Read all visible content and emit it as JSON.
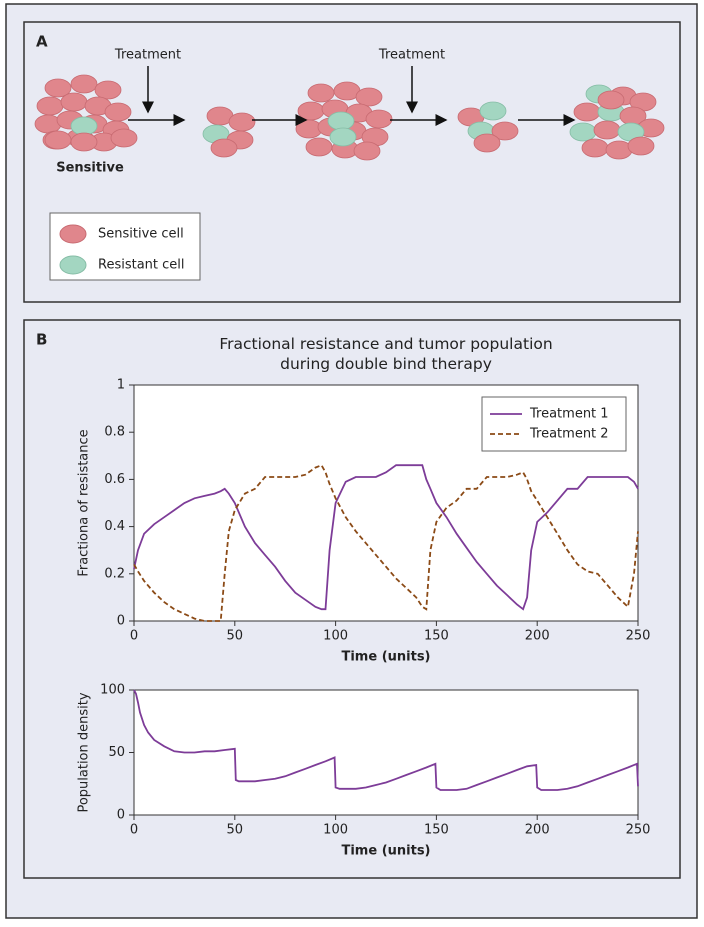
{
  "panel_a": {
    "label": "A",
    "treatment_labels": [
      "Treatment",
      "Treatment"
    ],
    "sensitive_label": "Sensitive",
    "legend": [
      "Sensitive cell",
      "Resistant cell"
    ]
  },
  "panel_b": {
    "label": "B"
  },
  "chart_data": [
    {
      "type": "line",
      "title": "Fractional resistance and tumor population during double bind therapy",
      "xlabel": "Time (units)",
      "ylabel": "Fractiona of resistance",
      "x": [
        0,
        2,
        5,
        10,
        15,
        20,
        25,
        30,
        35,
        40,
        43,
        45,
        47,
        50,
        55,
        60,
        65,
        70,
        75,
        80,
        85,
        90,
        93,
        95,
        97,
        100,
        105,
        110,
        115,
        120,
        125,
        130,
        135,
        140,
        143,
        145,
        147,
        150,
        155,
        160,
        165,
        170,
        175,
        180,
        185,
        190,
        193,
        195,
        197,
        200,
        205,
        210,
        215,
        220,
        225,
        230,
        235,
        240,
        245,
        248,
        250
      ],
      "series": [
        {
          "name": "Treatment 1",
          "color": "#7d3c98",
          "linestyle": "solid",
          "values": [
            0.22,
            0.3,
            0.37,
            0.41,
            0.44,
            0.47,
            0.5,
            0.52,
            0.53,
            0.54,
            0.55,
            0.56,
            0.54,
            0.5,
            0.4,
            0.33,
            0.28,
            0.23,
            0.17,
            0.12,
            0.09,
            0.06,
            0.05,
            0.05,
            0.3,
            0.5,
            0.59,
            0.61,
            0.61,
            0.61,
            0.63,
            0.66,
            0.66,
            0.66,
            0.66,
            0.6,
            0.56,
            0.5,
            0.44,
            0.37,
            0.31,
            0.25,
            0.2,
            0.15,
            0.11,
            0.07,
            0.05,
            0.1,
            0.3,
            0.42,
            0.46,
            0.51,
            0.56,
            0.56,
            0.61,
            0.61,
            0.61,
            0.61,
            0.61,
            0.59,
            0.56
          ]
        },
        {
          "name": "Treatment 2",
          "color": "#8b4a16",
          "linestyle": "dashed",
          "values": [
            0.24,
            0.21,
            0.17,
            0.12,
            0.08,
            0.05,
            0.03,
            0.01,
            0,
            0,
            0,
            0.2,
            0.38,
            0.47,
            0.54,
            0.56,
            0.61,
            0.61,
            0.61,
            0.61,
            0.62,
            0.65,
            0.66,
            0.63,
            0.58,
            0.52,
            0.44,
            0.38,
            0.33,
            0.28,
            0.23,
            0.18,
            0.14,
            0.1,
            0.06,
            0.05,
            0.3,
            0.42,
            0.48,
            0.51,
            0.56,
            0.56,
            0.61,
            0.61,
            0.61,
            0.62,
            0.63,
            0.6,
            0.55,
            0.51,
            0.44,
            0.37,
            0.3,
            0.24,
            0.21,
            0.2,
            0.15,
            0.1,
            0.06,
            0.2,
            0.38
          ]
        }
      ],
      "xlim": [
        0,
        250
      ],
      "xticks": [
        0,
        50,
        100,
        150,
        200,
        250
      ],
      "ylim": [
        0,
        1
      ],
      "yticks": [
        0,
        0.2,
        0.4,
        0.6,
        0.8,
        1
      ],
      "legend": "upper right",
      "grid": false
    },
    {
      "type": "line",
      "xlabel": "Time (units)",
      "ylabel": "Population density",
      "color": "#7d3c98",
      "x": [
        0,
        1,
        2,
        3,
        5,
        7,
        10,
        15,
        20,
        25,
        30,
        35,
        40,
        45,
        50,
        50.5,
        52,
        55,
        60,
        65,
        70,
        75,
        80,
        85,
        90,
        95,
        99.5,
        100,
        102,
        105,
        110,
        115,
        120,
        125,
        130,
        135,
        140,
        145,
        149.5,
        150,
        152,
        155,
        160,
        165,
        170,
        175,
        180,
        185,
        190,
        195,
        199.5,
        200,
        202,
        205,
        210,
        215,
        220,
        225,
        230,
        235,
        240,
        245,
        249.5,
        250
      ],
      "values": [
        100,
        97,
        90,
        82,
        72,
        66,
        60,
        55,
        51,
        50,
        50,
        51,
        51,
        52,
        53,
        28,
        27,
        27,
        27,
        28,
        29,
        31,
        34,
        37,
        40,
        43,
        46,
        22,
        21,
        21,
        21,
        22,
        24,
        26,
        29,
        32,
        35,
        38,
        41,
        22,
        20,
        20,
        20,
        21,
        24,
        27,
        30,
        33,
        36,
        39,
        40,
        22,
        20,
        20,
        20,
        21,
        23,
        26,
        29,
        32,
        35,
        38,
        41,
        23
      ],
      "xlim": [
        0,
        250
      ],
      "xticks": [
        0,
        50,
        100,
        150,
        200,
        250
      ],
      "ylim": [
        0,
        100
      ],
      "yticks": [
        0,
        50,
        100
      ],
      "grid": false
    }
  ]
}
